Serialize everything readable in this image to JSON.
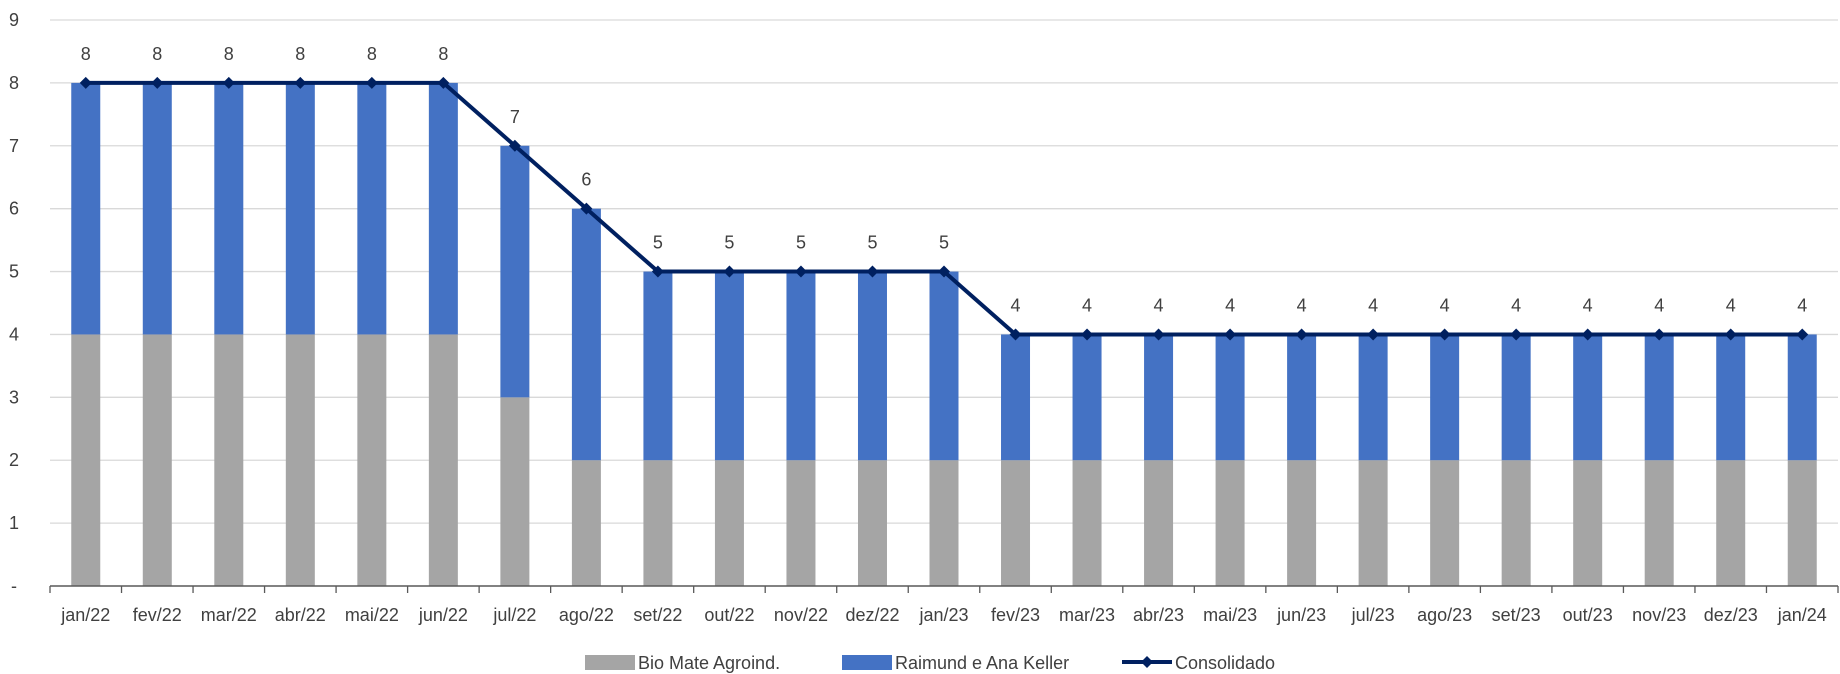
{
  "chart_data": {
    "type": "bar",
    "stacked": true,
    "categories": [
      "jan/22",
      "fev/22",
      "mar/22",
      "abr/22",
      "mai/22",
      "jun/22",
      "jul/22",
      "ago/22",
      "set/22",
      "out/22",
      "nov/22",
      "dez/22",
      "jan/23",
      "fev/23",
      "mar/23",
      "abr/23",
      "mai/23",
      "jun/23",
      "jul/23",
      "ago/23",
      "set/23",
      "out/23",
      "nov/23",
      "dez/23",
      "jan/24"
    ],
    "series": [
      {
        "name": "Bio Mate Agroind.",
        "kind": "bar",
        "color": "#a5a5a5",
        "values": [
          4,
          4,
          4,
          4,
          4,
          4,
          3,
          2,
          2,
          2,
          2,
          2,
          2,
          2,
          2,
          2,
          2,
          2,
          2,
          2,
          2,
          2,
          2,
          2,
          2
        ]
      },
      {
        "name": "Raimund e Ana Keller",
        "kind": "bar",
        "color": "#4472c4",
        "values": [
          4,
          4,
          4,
          4,
          4,
          4,
          4,
          4,
          3,
          3,
          3,
          3,
          3,
          2,
          2,
          2,
          2,
          2,
          2,
          2,
          2,
          2,
          2,
          2,
          2
        ]
      },
      {
        "name": "Consolidado",
        "kind": "line",
        "color": "#002060",
        "marker": "diamond",
        "values": [
          8,
          8,
          8,
          8,
          8,
          8,
          7,
          6,
          5,
          5,
          5,
          5,
          5,
          4,
          4,
          4,
          4,
          4,
          4,
          4,
          4,
          4,
          4,
          4,
          4
        ]
      }
    ],
    "data_labels": [
      "8",
      "8",
      "8",
      "8",
      "8",
      "8",
      "7",
      "6",
      "5",
      "5",
      "5",
      "5",
      "5",
      "4",
      "4",
      "4",
      "4",
      "4",
      "4",
      "4",
      "4",
      "4",
      "4",
      "4",
      "4"
    ],
    "y_ticks": [
      "-",
      "1",
      "2",
      "3",
      "4",
      "5",
      "6",
      "7",
      "8",
      "9"
    ],
    "ylim": [
      0,
      9
    ],
    "grid": true,
    "legend_position": "bottom",
    "title": "",
    "xlabel": "",
    "ylabel": ""
  }
}
